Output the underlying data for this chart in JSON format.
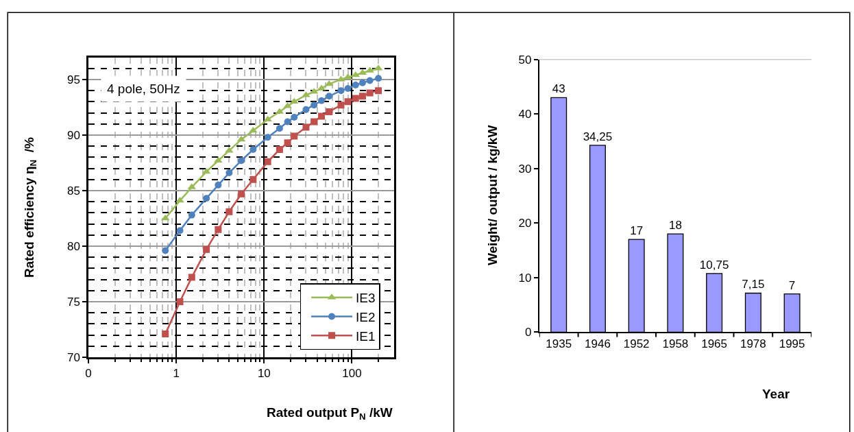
{
  "chart_data": [
    {
      "type": "line",
      "xlabel": "Rated output P$_{N}$ /kW",
      "ylabel": "Rated efficiency η$_{N}$  /%",
      "x": [
        0.75,
        1.1,
        1.5,
        2.2,
        3,
        4,
        5.5,
        7.5,
        11,
        15,
        18.5,
        22,
        30,
        37,
        45,
        55,
        75,
        90,
        110,
        132,
        160,
        200
      ],
      "series": [
        {
          "name": "IE3",
          "color": "#9bbb59",
          "marker": "triangle",
          "values": [
            82.5,
            84.1,
            85.3,
            86.7,
            87.7,
            88.6,
            89.6,
            90.4,
            91.4,
            92.1,
            92.6,
            93.0,
            93.6,
            93.9,
            94.2,
            94.6,
            95.0,
            95.2,
            95.4,
            95.6,
            95.8,
            96.0
          ]
        },
        {
          "name": "IE2",
          "color": "#4f81bd",
          "marker": "circle",
          "values": [
            79.6,
            81.4,
            82.8,
            84.3,
            85.5,
            86.6,
            87.7,
            88.7,
            89.8,
            90.6,
            91.2,
            91.6,
            92.3,
            92.7,
            93.1,
            93.5,
            94.0,
            94.2,
            94.5,
            94.7,
            94.9,
            95.1
          ]
        },
        {
          "name": "IE1",
          "color": "#c0504d",
          "marker": "square",
          "values": [
            72.1,
            75.0,
            77.2,
            79.7,
            81.5,
            83.1,
            84.7,
            86.0,
            87.6,
            88.7,
            89.3,
            89.9,
            90.7,
            91.2,
            91.7,
            92.1,
            92.7,
            93.0,
            93.3,
            93.5,
            93.8,
            94.0
          ]
        }
      ],
      "log": "x",
      "xlim": [
        0.1,
        300
      ],
      "xticks": [
        {
          "value": 0.1,
          "label": "0"
        },
        1,
        10,
        100
      ],
      "ylim": [
        70,
        97
      ],
      "yticks": [
        70,
        75,
        80,
        85,
        90,
        95
      ],
      "grid": true,
      "legend": "bottom right",
      "annotations": [
        "4 pole, 50Hz"
      ]
    },
    {
      "type": "bar",
      "xlabel": "Year",
      "ylabel": "Weight/ output / kg/kW",
      "categories": [
        "1935",
        "1946",
        "1952",
        "1958",
        "1965",
        "1978",
        "1995"
      ],
      "values": [
        43,
        34.25,
        17,
        18,
        10.75,
        7.15,
        7
      ],
      "color": "#9999ff",
      "value_labels": [
        "43",
        "34,25",
        "17",
        "18",
        "10,75",
        "7,15",
        "7"
      ],
      "ylim": [
        0,
        50
      ],
      "yticks": [
        0,
        10,
        20,
        30,
        40,
        50
      ]
    }
  ]
}
